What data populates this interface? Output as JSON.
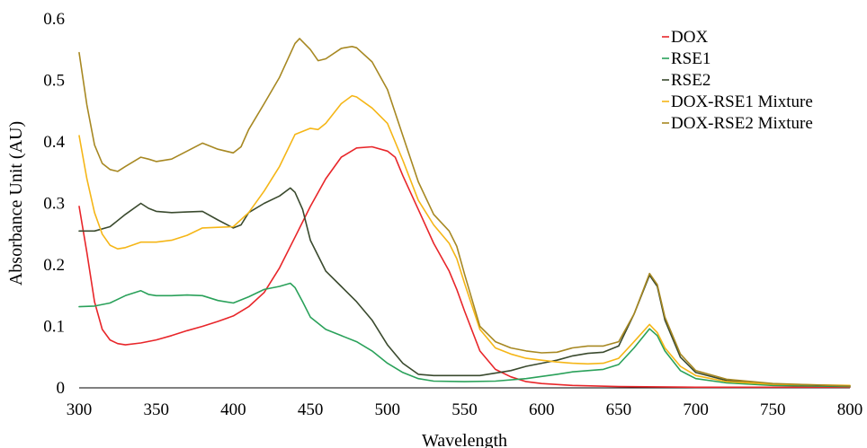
{
  "chart_data": {
    "type": "line",
    "title": "",
    "xlabel": "Wavelength",
    "ylabel": "Absorbance Unit (AU)",
    "xlim": [
      300,
      800
    ],
    "ylim": [
      0,
      0.6
    ],
    "x_ticks": [
      "300",
      "350",
      "400",
      "450",
      "500",
      "550",
      "600",
      "650",
      "700",
      "750",
      "800"
    ],
    "y_ticks": [
      "0",
      "0.1",
      "0.2",
      "0.3",
      "0.4",
      "0.5",
      "0.6"
    ],
    "grid": false,
    "legend_position": "top-right",
    "series": [
      {
        "name": "DOX",
        "color": "#e8262a",
        "points": [
          [
            300,
            0.295
          ],
          [
            305,
            0.22
          ],
          [
            310,
            0.14
          ],
          [
            315,
            0.095
          ],
          [
            320,
            0.078
          ],
          [
            325,
            0.072
          ],
          [
            330,
            0.07
          ],
          [
            340,
            0.073
          ],
          [
            350,
            0.078
          ],
          [
            360,
            0.085
          ],
          [
            370,
            0.093
          ],
          [
            380,
            0.1
          ],
          [
            390,
            0.108
          ],
          [
            400,
            0.117
          ],
          [
            410,
            0.132
          ],
          [
            420,
            0.155
          ],
          [
            430,
            0.195
          ],
          [
            440,
            0.245
          ],
          [
            450,
            0.295
          ],
          [
            460,
            0.34
          ],
          [
            470,
            0.375
          ],
          [
            480,
            0.39
          ],
          [
            490,
            0.392
          ],
          [
            500,
            0.385
          ],
          [
            505,
            0.375
          ],
          [
            510,
            0.345
          ],
          [
            520,
            0.29
          ],
          [
            530,
            0.235
          ],
          [
            540,
            0.19
          ],
          [
            545,
            0.16
          ],
          [
            550,
            0.125
          ],
          [
            560,
            0.06
          ],
          [
            570,
            0.03
          ],
          [
            580,
            0.018
          ],
          [
            590,
            0.01
          ],
          [
            600,
            0.007
          ],
          [
            620,
            0.004
          ],
          [
            650,
            0.002
          ],
          [
            700,
            0.001
          ],
          [
            800,
            0.001
          ]
        ]
      },
      {
        "name": "RSE1",
        "color": "#2aa15a",
        "points": [
          [
            300,
            0.132
          ],
          [
            310,
            0.133
          ],
          [
            320,
            0.138
          ],
          [
            330,
            0.15
          ],
          [
            340,
            0.158
          ],
          [
            345,
            0.152
          ],
          [
            350,
            0.15
          ],
          [
            360,
            0.15
          ],
          [
            370,
            0.151
          ],
          [
            380,
            0.15
          ],
          [
            390,
            0.142
          ],
          [
            400,
            0.138
          ],
          [
            410,
            0.148
          ],
          [
            420,
            0.16
          ],
          [
            430,
            0.165
          ],
          [
            437,
            0.17
          ],
          [
            440,
            0.163
          ],
          [
            445,
            0.14
          ],
          [
            450,
            0.115
          ],
          [
            460,
            0.095
          ],
          [
            470,
            0.085
          ],
          [
            480,
            0.075
          ],
          [
            490,
            0.06
          ],
          [
            500,
            0.04
          ],
          [
            510,
            0.025
          ],
          [
            520,
            0.015
          ],
          [
            530,
            0.011
          ],
          [
            550,
            0.01
          ],
          [
            570,
            0.011
          ],
          [
            590,
            0.015
          ],
          [
            610,
            0.022
          ],
          [
            620,
            0.026
          ],
          [
            630,
            0.028
          ],
          [
            640,
            0.03
          ],
          [
            650,
            0.038
          ],
          [
            660,
            0.065
          ],
          [
            670,
            0.096
          ],
          [
            675,
            0.085
          ],
          [
            680,
            0.06
          ],
          [
            690,
            0.028
          ],
          [
            700,
            0.015
          ],
          [
            720,
            0.008
          ],
          [
            750,
            0.004
          ],
          [
            800,
            0.002
          ]
        ]
      },
      {
        "name": "RSE2",
        "color": "#3a4a2e",
        "points": [
          [
            300,
            0.255
          ],
          [
            310,
            0.255
          ],
          [
            320,
            0.262
          ],
          [
            330,
            0.282
          ],
          [
            340,
            0.3
          ],
          [
            345,
            0.292
          ],
          [
            350,
            0.287
          ],
          [
            360,
            0.285
          ],
          [
            370,
            0.286
          ],
          [
            380,
            0.287
          ],
          [
            390,
            0.273
          ],
          [
            400,
            0.26
          ],
          [
            405,
            0.265
          ],
          [
            410,
            0.285
          ],
          [
            420,
            0.3
          ],
          [
            430,
            0.312
          ],
          [
            437,
            0.325
          ],
          [
            440,
            0.318
          ],
          [
            445,
            0.29
          ],
          [
            450,
            0.24
          ],
          [
            460,
            0.19
          ],
          [
            470,
            0.165
          ],
          [
            480,
            0.14
          ],
          [
            490,
            0.11
          ],
          [
            500,
            0.07
          ],
          [
            510,
            0.04
          ],
          [
            520,
            0.022
          ],
          [
            530,
            0.02
          ],
          [
            550,
            0.02
          ],
          [
            560,
            0.02
          ],
          [
            570,
            0.024
          ],
          [
            580,
            0.028
          ],
          [
            590,
            0.035
          ],
          [
            600,
            0.04
          ],
          [
            610,
            0.045
          ],
          [
            620,
            0.052
          ],
          [
            630,
            0.056
          ],
          [
            640,
            0.058
          ],
          [
            650,
            0.068
          ],
          [
            660,
            0.12
          ],
          [
            670,
            0.183
          ],
          [
            675,
            0.165
          ],
          [
            680,
            0.11
          ],
          [
            690,
            0.05
          ],
          [
            700,
            0.025
          ],
          [
            720,
            0.012
          ],
          [
            750,
            0.006
          ],
          [
            800,
            0.003
          ]
        ]
      },
      {
        "name": "DOX-RSE1 Mixture",
        "color": "#f5b617",
        "points": [
          [
            300,
            0.41
          ],
          [
            305,
            0.34
          ],
          [
            310,
            0.285
          ],
          [
            315,
            0.25
          ],
          [
            320,
            0.232
          ],
          [
            325,
            0.226
          ],
          [
            330,
            0.228
          ],
          [
            340,
            0.237
          ],
          [
            350,
            0.237
          ],
          [
            360,
            0.24
          ],
          [
            370,
            0.248
          ],
          [
            380,
            0.26
          ],
          [
            390,
            0.261
          ],
          [
            400,
            0.262
          ],
          [
            410,
            0.285
          ],
          [
            420,
            0.32
          ],
          [
            430,
            0.36
          ],
          [
            440,
            0.412
          ],
          [
            450,
            0.422
          ],
          [
            455,
            0.42
          ],
          [
            460,
            0.43
          ],
          [
            470,
            0.462
          ],
          [
            477,
            0.475
          ],
          [
            480,
            0.473
          ],
          [
            490,
            0.455
          ],
          [
            500,
            0.43
          ],
          [
            510,
            0.37
          ],
          [
            520,
            0.305
          ],
          [
            530,
            0.265
          ],
          [
            540,
            0.235
          ],
          [
            545,
            0.21
          ],
          [
            550,
            0.17
          ],
          [
            560,
            0.095
          ],
          [
            570,
            0.065
          ],
          [
            580,
            0.055
          ],
          [
            590,
            0.048
          ],
          [
            600,
            0.045
          ],
          [
            610,
            0.042
          ],
          [
            620,
            0.04
          ],
          [
            630,
            0.039
          ],
          [
            640,
            0.04
          ],
          [
            650,
            0.048
          ],
          [
            660,
            0.075
          ],
          [
            670,
            0.103
          ],
          [
            675,
            0.09
          ],
          [
            680,
            0.065
          ],
          [
            690,
            0.035
          ],
          [
            700,
            0.02
          ],
          [
            720,
            0.01
          ],
          [
            750,
            0.006
          ],
          [
            800,
            0.004
          ]
        ]
      },
      {
        "name": "DOX-RSE2 Mixture",
        "color": "#a78822",
        "points": [
          [
            300,
            0.545
          ],
          [
            305,
            0.46
          ],
          [
            310,
            0.395
          ],
          [
            315,
            0.365
          ],
          [
            320,
            0.355
          ],
          [
            325,
            0.352
          ],
          [
            330,
            0.36
          ],
          [
            340,
            0.375
          ],
          [
            345,
            0.372
          ],
          [
            350,
            0.368
          ],
          [
            360,
            0.372
          ],
          [
            370,
            0.385
          ],
          [
            380,
            0.398
          ],
          [
            390,
            0.388
          ],
          [
            400,
            0.382
          ],
          [
            405,
            0.392
          ],
          [
            410,
            0.42
          ],
          [
            420,
            0.462
          ],
          [
            430,
            0.505
          ],
          [
            440,
            0.56
          ],
          [
            443,
            0.568
          ],
          [
            450,
            0.55
          ],
          [
            455,
            0.532
          ],
          [
            460,
            0.535
          ],
          [
            470,
            0.552
          ],
          [
            477,
            0.555
          ],
          [
            480,
            0.553
          ],
          [
            490,
            0.53
          ],
          [
            500,
            0.485
          ],
          [
            510,
            0.41
          ],
          [
            520,
            0.335
          ],
          [
            530,
            0.282
          ],
          [
            540,
            0.255
          ],
          [
            545,
            0.23
          ],
          [
            550,
            0.185
          ],
          [
            560,
            0.1
          ],
          [
            570,
            0.075
          ],
          [
            580,
            0.065
          ],
          [
            590,
            0.06
          ],
          [
            600,
            0.057
          ],
          [
            610,
            0.058
          ],
          [
            620,
            0.065
          ],
          [
            630,
            0.068
          ],
          [
            640,
            0.068
          ],
          [
            650,
            0.075
          ],
          [
            660,
            0.12
          ],
          [
            670,
            0.186
          ],
          [
            675,
            0.168
          ],
          [
            680,
            0.115
          ],
          [
            690,
            0.055
          ],
          [
            700,
            0.028
          ],
          [
            720,
            0.014
          ],
          [
            750,
            0.007
          ],
          [
            800,
            0.003
          ]
        ]
      }
    ]
  }
}
